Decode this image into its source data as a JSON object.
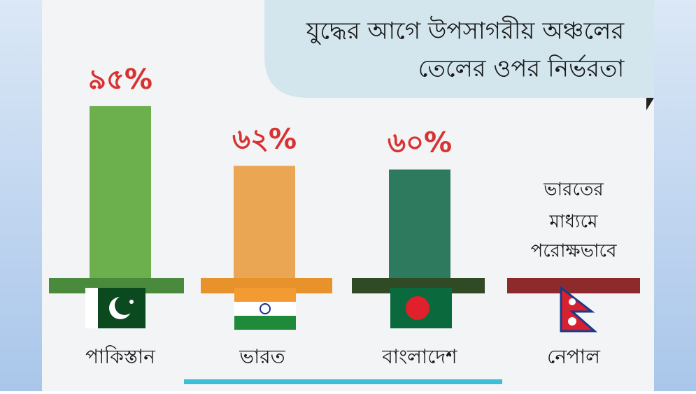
{
  "chart_data": {
    "type": "bar",
    "title": [
      "যুদ্ধের আগে উপসাগরীয় অঞ্চলের",
      "তেলের ওপর নির্ভরতা"
    ],
    "categories": [
      "পাকিস্তান",
      "ভারত",
      "বাংলাদেশ",
      "নেপাল"
    ],
    "values": [
      95,
      62,
      60,
      null
    ],
    "value_labels": [
      "৯৫%",
      "৬২%",
      "৬০%",
      null
    ],
    "colors": [
      "#6cb04e",
      "#eba654",
      "#2e7a5e",
      "#8e2a2c"
    ],
    "base_colors": [
      "#4a8a3c",
      "#e8922c",
      "#2f4a24",
      "#8e2a2c"
    ],
    "annotation": [
      "ভারতের",
      "মাধ্যমে",
      "পরোক্ষভাবে"
    ]
  }
}
